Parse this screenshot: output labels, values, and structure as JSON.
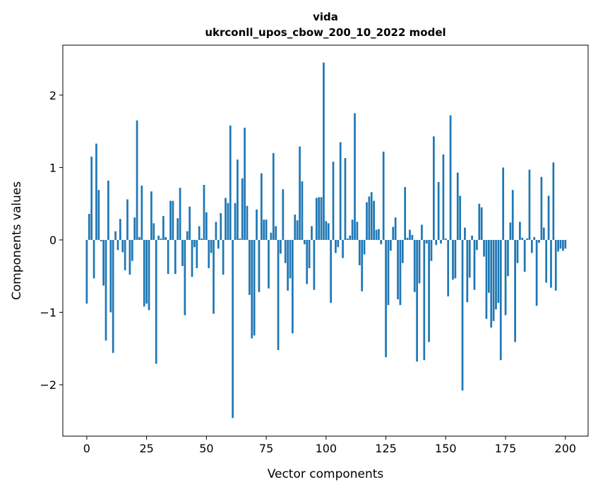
{
  "chart_data": {
    "type": "bar",
    "title": "vida",
    "subtitle": "ukrconll_upos_cbow_200_10_2022 model",
    "xlabel": "Vector components",
    "ylabel": "Components values",
    "xlim": [
      -10,
      209.5
    ],
    "ylim": [
      -2.71,
      2.69
    ],
    "xticks": [
      0,
      25,
      50,
      75,
      100,
      125,
      150,
      175,
      200
    ],
    "xtick_labels": [
      "0",
      "25",
      "50",
      "75",
      "100",
      "125",
      "150",
      "175",
      "200"
    ],
    "yticks": [
      -2,
      -1,
      0,
      1,
      2
    ],
    "ytick_labels": [
      "−2",
      "−1",
      "0",
      "1",
      "2"
    ],
    "grid": false,
    "color": "#1f77b4",
    "values": [
      -0.88,
      0.36,
      1.15,
      -0.53,
      1.33,
      0.69,
      -0.02,
      -0.63,
      -1.39,
      0.82,
      -1.0,
      -1.56,
      0.12,
      -0.14,
      0.29,
      -0.17,
      -0.42,
      0.56,
      -0.48,
      -0.29,
      0.31,
      1.65,
      0.04,
      0.75,
      -0.92,
      -0.88,
      -0.97,
      0.67,
      0.23,
      -1.71,
      0.06,
      0.02,
      0.33,
      0.04,
      -0.47,
      0.54,
      0.54,
      -0.47,
      0.3,
      0.72,
      -0.36,
      -1.04,
      0.12,
      0.46,
      -0.51,
      -0.1,
      -0.39,
      0.19,
      0.02,
      0.76,
      0.38,
      -0.39,
      -0.18,
      -1.02,
      0.25,
      -0.12,
      0.37,
      -0.48,
      0.58,
      0.51,
      1.58,
      -2.46,
      0.51,
      1.11,
      0.02,
      0.85,
      1.55,
      0.47,
      -0.76,
      -1.36,
      -1.32,
      0.42,
      -0.72,
      0.92,
      0.28,
      0.28,
      -0.67,
      0.1,
      1.2,
      0.19,
      -1.52,
      -0.19,
      0.7,
      -0.32,
      -0.7,
      -0.53,
      -1.29,
      0.35,
      0.27,
      1.29,
      0.81,
      -0.06,
      -0.61,
      -0.39,
      0.19,
      -0.69,
      0.58,
      0.59,
      0.59,
      2.45,
      0.26,
      0.23,
      -0.87,
      1.08,
      -0.18,
      -0.1,
      1.35,
      -0.25,
      1.13,
      0.02,
      0.06,
      0.28,
      1.75,
      0.25,
      -0.35,
      -0.71,
      -0.2,
      0.52,
      0.6,
      0.66,
      0.54,
      0.14,
      0.15,
      -0.06,
      1.22,
      -1.62,
      -0.9,
      -0.15,
      0.18,
      0.31,
      -0.82,
      -0.9,
      -0.32,
      0.73,
      0.03,
      0.14,
      0.07,
      -0.72,
      -1.68,
      -0.6,
      0.21,
      -1.66,
      -0.05,
      -1.41,
      -0.29,
      1.43,
      -0.07,
      0.8,
      -0.05,
      1.18,
      0.02,
      -0.78,
      1.72,
      -0.55,
      -0.53,
      0.93,
      0.61,
      -2.08,
      0.17,
      -0.86,
      -0.52,
      0.06,
      -0.69,
      -0.14,
      0.5,
      0.45,
      -0.23,
      -1.09,
      -0.73,
      -1.21,
      -1.12,
      -0.96,
      -0.87,
      -1.66,
      1.0,
      -1.04,
      -0.5,
      0.24,
      0.69,
      -1.41,
      -0.32,
      0.25,
      0.03,
      -0.44,
      0.02,
      0.97,
      -0.18,
      0.04,
      -0.91,
      -0.04,
      0.87,
      0.17,
      -0.59,
      0.61,
      -0.66,
      1.07,
      -0.7,
      -0.16,
      -0.12,
      -0.15,
      -0.12
    ]
  }
}
